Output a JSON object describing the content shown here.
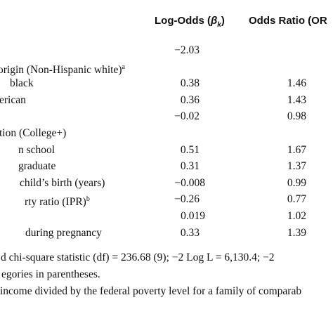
{
  "header": {
    "log_odds": {
      "text": "Log-Odds (",
      "symbol": "β",
      "subscript": "k",
      "close": ")"
    },
    "odds_ratio": "Odds Ratio (OR"
  },
  "rows": [
    {
      "log_odds": "−2.03"
    },
    {
      "label": "origin (Non-Hispanic white)",
      "sup": "a"
    },
    {
      "label": "black",
      "log_odds": "0.38",
      "odds_ratio": "1.46"
    },
    {
      "label": "erican",
      "log_odds": "0.36",
      "odds_ratio": "1.43"
    },
    {
      "log_odds": "−0.02",
      "odds_ratio": "0.98"
    },
    {
      "label": "tion (College+)"
    },
    {
      "label": "n school",
      "log_odds": "0.51",
      "odds_ratio": "1.67"
    },
    {
      "label": "graduate",
      "log_odds": "0.31",
      "odds_ratio": "1.37"
    },
    {
      "label": "child’s birth (years)",
      "log_odds": "−0.008",
      "odds_ratio": "0.99"
    },
    {
      "label": "rty ratio (IPR)",
      "sup": "b",
      "log_odds": "−0.26",
      "odds_ratio": "0.77"
    },
    {
      "log_odds": "0.019",
      "odds_ratio": "1.02"
    },
    {
      "label": "during pregnancy",
      "log_odds": "0.33",
      "odds_ratio": "1.39"
    }
  ],
  "footnotes": [
    "d chi-square statistic (df) = 236.68 (9); −2 Log L = 6,130.4; −2",
    "egories in parentheses.",
    "income divided by the federal poverty level for a family of comparab"
  ]
}
